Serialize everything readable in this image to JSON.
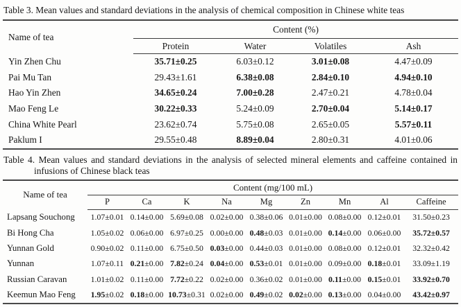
{
  "colors": {
    "background": "#fdfdfc",
    "text": "#181818",
    "rule_heavy": "#454545",
    "rule_light": "#3a3a3a"
  },
  "table3": {
    "caption": "Table 3. Mean values and standard deviations in the analysis of chemical composition in Chinese white teas",
    "row_header": "Name of tea",
    "group_header": "Content (%)",
    "columns": [
      "Protein",
      "Water",
      "Volatiles",
      "Ash"
    ],
    "rows": [
      {
        "name": "Yin Zhen Chu",
        "cells": [
          {
            "v": "35.71±0.25",
            "b": "full"
          },
          {
            "v": "6.03±0.12",
            "b": "none"
          },
          {
            "v": "3.01±0.08",
            "b": "full"
          },
          {
            "v": "4.47±0.09",
            "b": "none"
          }
        ]
      },
      {
        "name": "Pai Mu Tan",
        "cells": [
          {
            "v": "29.43±1.61",
            "b": "none"
          },
          {
            "v": "6.38±0.08",
            "b": "full"
          },
          {
            "v": "2.84±0.10",
            "b": "full"
          },
          {
            "v": "4.94±0.10",
            "b": "full"
          }
        ]
      },
      {
        "name": "Hao Yin Zhen",
        "cells": [
          {
            "v": "34.65±0.24",
            "b": "full"
          },
          {
            "v": "7.00±0.28",
            "b": "full"
          },
          {
            "v": "2.47±0.21",
            "b": "none"
          },
          {
            "v": "4.78±0.04",
            "b": "none"
          }
        ]
      },
      {
        "name": "Mao Feng Le",
        "cells": [
          {
            "v": "30.22±0.33",
            "b": "full"
          },
          {
            "v": "5.24±0.09",
            "b": "none"
          },
          {
            "v": "2.70±0.04",
            "b": "full"
          },
          {
            "v": "5.14±0.17",
            "b": "full"
          }
        ]
      },
      {
        "name": "China White Pearl",
        "cells": [
          {
            "v": "23.62±0.74",
            "b": "none"
          },
          {
            "v": "5.75±0.08",
            "b": "none"
          },
          {
            "v": "2.65±0.05",
            "b": "none"
          },
          {
            "v": "5.57±0.11",
            "b": "full"
          }
        ]
      },
      {
        "name": "Paklum I",
        "cells": [
          {
            "v": "29.55±0.48",
            "b": "none"
          },
          {
            "v": "8.89±0.04",
            "b": "full"
          },
          {
            "v": "2.80±0.31",
            "b": "none"
          },
          {
            "v": "4.01±0.06",
            "b": "none"
          }
        ]
      }
    ]
  },
  "table4": {
    "caption_line1": "Table 4. Mean values and standard deviations in the analysis of selected mineral elements and caffeine contained in",
    "caption_line2": "infusions of Chinese black teas",
    "row_header": "Name of tea",
    "group_header": "Content (mg/100 mL)",
    "columns": [
      "P",
      "Ca",
      "K",
      "Na",
      "Mg",
      "Zn",
      "Mn",
      "Al",
      "Caffeine"
    ],
    "rows": [
      {
        "name": "Lapsang Souchong",
        "cells": [
          {
            "v": "1.07±0.01",
            "b": "none"
          },
          {
            "v": "0.14±0.00",
            "b": "none"
          },
          {
            "v": "5.69±0.08",
            "b": "none"
          },
          {
            "v": "0.02±0.00",
            "b": "none"
          },
          {
            "v": "0.38±0.06",
            "b": "none"
          },
          {
            "v": "0.01±0.00",
            "b": "none"
          },
          {
            "v": "0.08±0.00",
            "b": "none"
          },
          {
            "v": "0.12±0.01",
            "b": "none"
          },
          {
            "v": "31.50±0.23",
            "b": "none"
          }
        ]
      },
      {
        "name": "Bi Hong Cha",
        "cells": [
          {
            "v": "1.05±0.02",
            "b": "none"
          },
          {
            "v": "0.06±0.00",
            "b": "none"
          },
          {
            "v": "6.97±0.25",
            "b": "none"
          },
          {
            "v": "0.00±0.00",
            "b": "none"
          },
          {
            "v": "0.48±0.03",
            "b": "mean"
          },
          {
            "v": "0.01±0.00",
            "b": "none"
          },
          {
            "v": "0.14±0.00",
            "b": "mean"
          },
          {
            "v": "0.06±0.00",
            "b": "none"
          },
          {
            "v": "35.72±0.57",
            "b": "full"
          }
        ]
      },
      {
        "name": "Yunnan Gold",
        "cells": [
          {
            "v": "0.90±0.02",
            "b": "none"
          },
          {
            "v": "0.11±0.00",
            "b": "none"
          },
          {
            "v": "6.75±0.50",
            "b": "none"
          },
          {
            "v": "0.03±0.00",
            "b": "mean"
          },
          {
            "v": "0.44±0.03",
            "b": "none"
          },
          {
            "v": "0.01±0.00",
            "b": "none"
          },
          {
            "v": "0.08±0.00",
            "b": "none"
          },
          {
            "v": "0.12±0.01",
            "b": "none"
          },
          {
            "v": "32.32±0.42",
            "b": "none"
          }
        ]
      },
      {
        "name": "Yunnan",
        "cells": [
          {
            "v": "1.07±0.11",
            "b": "none"
          },
          {
            "v": "0.21±0.00",
            "b": "mean"
          },
          {
            "v": "7.82±0.24",
            "b": "mean"
          },
          {
            "v": "0.04±0.00",
            "b": "mean"
          },
          {
            "v": "0.53±0.01",
            "b": "mean"
          },
          {
            "v": "0.01±0.00",
            "b": "none"
          },
          {
            "v": "0.09±0.00",
            "b": "none"
          },
          {
            "v": "0.18±0.01",
            "b": "mean"
          },
          {
            "v": "33.09±1.19",
            "b": "none"
          }
        ]
      },
      {
        "name": "Russian Caravan",
        "cells": [
          {
            "v": "1.01±0.02",
            "b": "none"
          },
          {
            "v": "0.11±0.00",
            "b": "none"
          },
          {
            "v": "7.72±0.22",
            "b": "mean"
          },
          {
            "v": "0.02±0.00",
            "b": "none"
          },
          {
            "v": "0.36±0.02",
            "b": "none"
          },
          {
            "v": "0.01±0.00",
            "b": "none"
          },
          {
            "v": "0.11±0.00",
            "b": "mean"
          },
          {
            "v": "0.15±0.01",
            "b": "mean"
          },
          {
            "v": "33.92±0.70",
            "b": "full"
          }
        ]
      },
      {
        "name": "Keemun Mao Feng",
        "cells": [
          {
            "v": "1.95±0.02",
            "b": "mean"
          },
          {
            "v": "0.18±0.00",
            "b": "mean"
          },
          {
            "v": "10.73±0.31",
            "b": "mean"
          },
          {
            "v": "0.02±0.00",
            "b": "none"
          },
          {
            "v": "0.49±0.02",
            "b": "mean"
          },
          {
            "v": "0.02±0.00",
            "b": "mean"
          },
          {
            "v": "0.13±0.00",
            "b": "mean"
          },
          {
            "v": "0.04±0.00",
            "b": "none"
          },
          {
            "v": "43.42±0.97",
            "b": "full"
          }
        ]
      }
    ]
  }
}
